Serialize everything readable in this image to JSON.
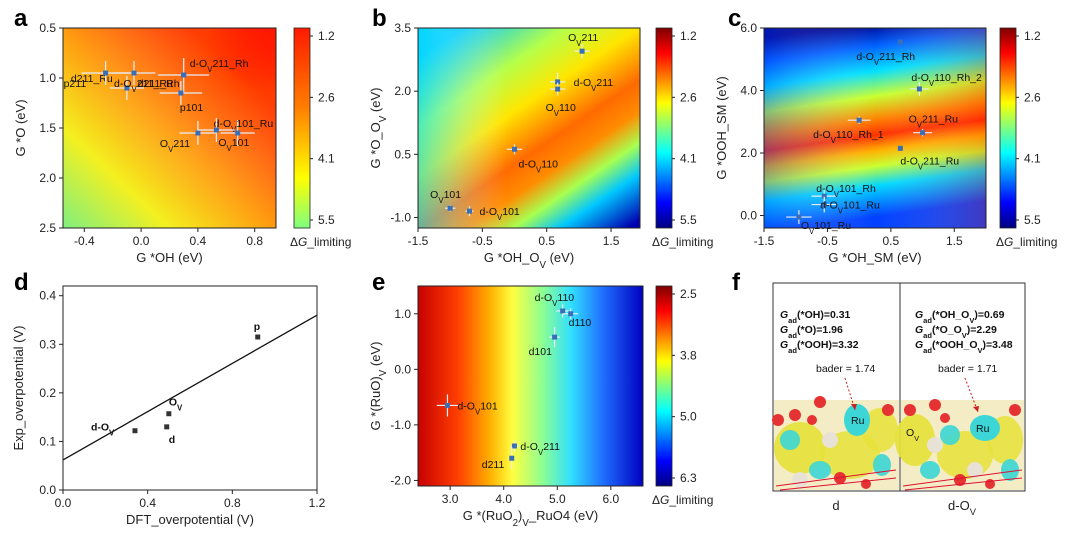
{
  "panels": [
    {
      "letter": "a",
      "kind": "heatmap",
      "xlabel": "G *OH (eV)",
      "ylabel": "G *O (eV)",
      "xticks": [
        "-0.4",
        "0.0",
        "0.4",
        "0.8"
      ],
      "yticks": [
        "0.5",
        "1.0",
        "1.5",
        "2.0",
        "2.5"
      ],
      "colorbar": {
        "label": "ΔG_limiting",
        "ticks": [
          "1.2",
          "2.6",
          "4.1",
          "5.5"
        ]
      }
    },
    {
      "letter": "b",
      "kind": "heatmap",
      "xlabel": "G *OH_OV (eV)",
      "ylabel": "G *O_OV (eV)",
      "xticks": [
        "-1.5",
        "-0.5",
        "0.5",
        "1.5"
      ],
      "yticks": [
        "-1.0",
        "0.5",
        "2.0",
        "3.5"
      ],
      "colorbar": {
        "label": "ΔG_limiting",
        "ticks": [
          "1.2",
          "2.6",
          "4.1",
          "5.5"
        ]
      }
    },
    {
      "letter": "c",
      "kind": "heatmap",
      "xlabel": "G *OH_SM (eV)",
      "ylabel": "G *OOH_SM (eV)",
      "xticks": [
        "-1.5",
        "-0.5",
        "0.5",
        "1.5"
      ],
      "yticks": [
        "0.0",
        "2.0",
        "4.0",
        "6.0"
      ],
      "colorbar": {
        "label": "ΔG_limiting",
        "ticks": [
          "1.2",
          "2.6",
          "4.1",
          "5.5"
        ]
      }
    },
    {
      "letter": "d",
      "kind": "scatter",
      "xlabel": "DFT_overpotential (V)",
      "ylabel": "Exp_overpotential (V)",
      "xticks": [
        "0.0",
        "0.4",
        "0.8",
        "1.2"
      ],
      "yticks": [
        "0.0",
        "0.1",
        "0.2",
        "0.3",
        "0.4"
      ]
    },
    {
      "letter": "e",
      "kind": "heatmap",
      "xlabel": "G *(RuO2)V_RuO4 (eV)",
      "ylabel": "G *(RuO)V (eV)",
      "xticks": [
        "3.0",
        "4.0",
        "5.0",
        "6.0"
      ],
      "yticks": [
        "-2.0",
        "-1.0",
        "0.0",
        "1.0"
      ],
      "colorbar": {
        "label": "ΔG_limiting",
        "ticks": [
          "2.5",
          "3.8",
          "5.0",
          "6.3"
        ]
      }
    },
    {
      "letter": "f",
      "kind": "image",
      "left": {
        "lines": [
          "Gad(*OH)=0.31",
          "Gad(*O)=1.96",
          "Gad(*OOH)=3.32"
        ],
        "bader": "bader = 1.74",
        "label": "d",
        "atom": "Ru"
      },
      "right": {
        "lines": [
          "Gad(*OH_OV)=0.69",
          "Gad(*O_OV)=2.29",
          "Gad(*OOH_OV)=3.48"
        ],
        "bader": "bader = 1.71",
        "label": "d-OV",
        "atom": "Ru",
        "atom2": "Ov"
      }
    }
  ],
  "chart_data": [
    {
      "type": "heatmap",
      "panel": "a",
      "xlabel": "G *OH (eV)",
      "ylabel": "G *O (eV)",
      "xlim": [
        -0.55,
        0.95
      ],
      "ylim": [
        0.5,
        2.5
      ],
      "y_inverted": true,
      "colorbar": {
        "label": "ΔG_limiting",
        "min": 1.2,
        "max": 5.5,
        "reversed": true
      },
      "points": [
        {
          "name": "d-OV211_Rh",
          "x": 0.3,
          "y": 0.97,
          "xerr": 0.18,
          "yerr": 0.17
        },
        {
          "name": "d211_Rh",
          "x": 0.3,
          "y": 0.97
        },
        {
          "name": "d-OV101_Ru",
          "x": 0.68,
          "y": 1.55,
          "xerr": 0.12,
          "yerr": 0.13
        },
        {
          "name": "OV211",
          "x": 0.4,
          "y": 1.55,
          "xerr": 0.13,
          "yerr": 0.12
        },
        {
          "name": "OV101",
          "x": 0.53,
          "y": 1.52,
          "xerr": 0.13,
          "yerr": 0.12
        },
        {
          "name": "d211_Ru",
          "x": -0.1,
          "y": 1.1,
          "xerr": 0.12,
          "yerr": 0.12
        },
        {
          "name": "p101",
          "x": 0.28,
          "y": 1.15,
          "xerr": 0.15,
          "yerr": 0.12
        },
        {
          "name": "p211",
          "x": -0.25,
          "y": 0.95,
          "xerr": 0.17,
          "yerr": 0.12
        },
        {
          "name": "d-OV211_Ru",
          "x": -0.05,
          "y": 0.95,
          "xerr": 0.15,
          "yerr": 0.12
        }
      ]
    },
    {
      "type": "heatmap",
      "panel": "b",
      "xlabel": "G *OH_OV (eV)",
      "ylabel": "G *O_OV (eV)",
      "xlim": [
        -1.5,
        1.95
      ],
      "ylim": [
        -1.25,
        3.5
      ],
      "colorbar": {
        "label": "ΔG_limiting",
        "min": 1.2,
        "max": 5.5,
        "reversed": true
      },
      "points": [
        {
          "name": "OV211",
          "x": 1.05,
          "y": 2.95,
          "xerr": 0.12,
          "yerr": 0.17
        },
        {
          "name": "d-OV211",
          "x": 0.67,
          "y": 2.22,
          "xerr": 0.12,
          "yerr": 0.22
        },
        {
          "name": "OV110",
          "x": 0.67,
          "y": 2.05,
          "xerr": 0.12,
          "yerr": 0.15
        },
        {
          "name": "d-OV110",
          "x": 0.0,
          "y": 0.62,
          "xerr": 0.12,
          "yerr": 0.12
        },
        {
          "name": "OV101",
          "x": -1.0,
          "y": -0.78,
          "xerr": 0.08,
          "yerr": 0.08
        },
        {
          "name": "d-OV101",
          "x": -0.7,
          "y": -0.85,
          "xerr": 0.06,
          "yerr": 0.12
        }
      ]
    },
    {
      "type": "heatmap",
      "panel": "c",
      "xlabel": "G *OH_SM (eV)",
      "ylabel": "G *OOH_SM (eV)",
      "xlim": [
        -1.5,
        2.0
      ],
      "ylim": [
        -0.4,
        6.0
      ],
      "colorbar": {
        "label": "ΔG_limiting",
        "min": 1.2,
        "max": 5.5,
        "reversed": true
      },
      "points": [
        {
          "name": "d-OV211_Rh",
          "x": 0.65,
          "y": 5.55
        },
        {
          "name": "d-OV110_Rh_2",
          "x": 0.95,
          "y": 4.05,
          "xerr": 0.15,
          "yerr": 0.22
        },
        {
          "name": "OV211_Ru",
          "x": 1.0,
          "y": 2.65,
          "xerr": 0.15,
          "yerr": 0.12
        },
        {
          "name": "d-OV110_Rh_1",
          "x": 0.0,
          "y": 3.05,
          "xerr": 0.18,
          "yerr": 0.12
        },
        {
          "name": "d-OV211_Ru",
          "x": 0.65,
          "y": 2.15
        },
        {
          "name": "d-OV101_Rh",
          "x": -0.55,
          "y": 0.62,
          "xerr": 0.2,
          "yerr": 0.22
        },
        {
          "name": "d-OV101_Ru",
          "x": -0.55,
          "y": 0.35,
          "xerr": 0.2,
          "yerr": 0.25
        },
        {
          "name": "OV101_Ru",
          "x": -0.95,
          "y": -0.05,
          "xerr": 0.2,
          "yerr": 0.22
        }
      ]
    },
    {
      "type": "scatter",
      "panel": "d",
      "xlabel": "DFT_overpotential (V)",
      "ylabel": "Exp_overpotential (V)",
      "xlim": [
        0,
        1.2
      ],
      "ylim": [
        0,
        0.42
      ],
      "points": [
        {
          "name": "p",
          "x": 0.92,
          "y": 0.315
        },
        {
          "name": "OV",
          "x": 0.5,
          "y": 0.157
        },
        {
          "name": "d",
          "x": 0.49,
          "y": 0.13
        },
        {
          "name": "d-OV",
          "x": 0.34,
          "y": 0.122
        }
      ],
      "fit": {
        "x": [
          0,
          1.2
        ],
        "y": [
          0.062,
          0.36
        ]
      }
    },
    {
      "type": "heatmap",
      "panel": "e",
      "xlabel": "G *(RuO2)V_RuO4 (eV)",
      "ylabel": "G *(RuO)V (eV)",
      "xlim": [
        2.4,
        6.6
      ],
      "ylim": [
        -2.1,
        1.5
      ],
      "colorbar": {
        "label": "ΔG_limiting",
        "min": 2.5,
        "max": 6.3
      },
      "points": [
        {
          "name": "d-OV110",
          "x": 5.1,
          "y": 1.05,
          "xerr": 0.12,
          "yerr": 0.12
        },
        {
          "name": "d110",
          "x": 5.25,
          "y": 1.0,
          "xerr": 0.14,
          "yerr": 0.1
        },
        {
          "name": "d101",
          "x": 4.95,
          "y": 0.58,
          "xerr": 0.1,
          "yerr": 0.18
        },
        {
          "name": "d-OV101",
          "x": 2.95,
          "y": -0.65,
          "xerr": 0.2,
          "yerr": 0.2
        },
        {
          "name": "d-OV211",
          "x": 4.2,
          "y": -1.38,
          "xerr": 0.08,
          "yerr": 0.1
        },
        {
          "name": "d211",
          "x": 4.15,
          "y": -1.6,
          "xerr": 0.05,
          "yerr": 0.2
        }
      ]
    }
  ]
}
